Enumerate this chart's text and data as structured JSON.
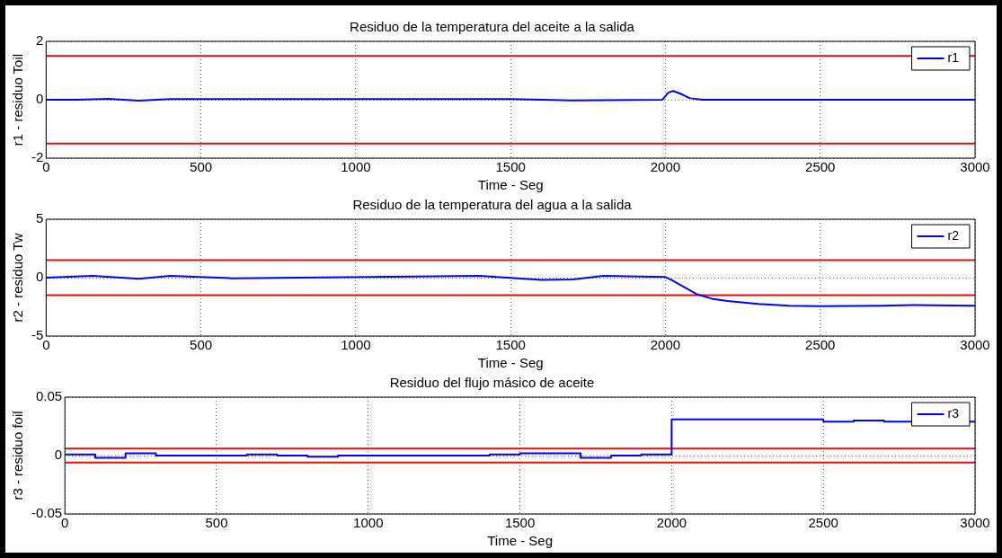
{
  "chart_data": [
    {
      "type": "line",
      "title": "Residuo de la temperatura del aceite a la salida",
      "xlabel": "Time - Seg",
      "ylabel": "r1 - residuo Toil",
      "xlim": [
        0,
        3000
      ],
      "xticks": [
        0,
        500,
        1000,
        1500,
        2000,
        2500,
        3000
      ],
      "ylim": [
        -2,
        2
      ],
      "yticks": [
        -2,
        0,
        2
      ],
      "grid": true,
      "legend": "top right",
      "series": [
        {
          "name": "r1",
          "color": "#0000ff",
          "x": [
            0,
            100,
            200,
            300,
            400,
            900,
            1500,
            1700,
            1990,
            2010,
            2025,
            2050,
            2080,
            2120,
            3000
          ],
          "values": [
            0,
            0,
            0.03,
            -0.03,
            0.02,
            0.02,
            0.02,
            -0.02,
            0,
            0.25,
            0.3,
            0.2,
            0.05,
            0,
            0
          ]
        }
      ],
      "ref_lines": [
        {
          "axis": "y",
          "value": 1.5,
          "color": "#e01010"
        },
        {
          "axis": "y",
          "value": -1.5,
          "color": "#e01010"
        }
      ]
    },
    {
      "type": "line",
      "title": "Residuo de la temperatura del agua a la salida",
      "xlabel": "Time - Seg",
      "ylabel": "r2 - residuo Tw",
      "xlim": [
        0,
        3000
      ],
      "xticks": [
        0,
        500,
        1000,
        1500,
        2000,
        2500,
        3000
      ],
      "ylim": [
        -5,
        5
      ],
      "yticks": [
        -5,
        0,
        5
      ],
      "grid": true,
      "legend": "top right",
      "series": [
        {
          "name": "r2",
          "color": "#0000ff",
          "x": [
            0,
            150,
            300,
            400,
            600,
            1400,
            1600,
            1700,
            1800,
            2000,
            2020,
            2060,
            2100,
            2150,
            2200,
            2300,
            2400,
            2500,
            2700,
            2800,
            3000
          ],
          "values": [
            0,
            0.15,
            -0.1,
            0.15,
            -0.05,
            0.15,
            -0.2,
            -0.15,
            0.15,
            0.05,
            -0.2,
            -0.8,
            -1.4,
            -1.8,
            -2.0,
            -2.25,
            -2.4,
            -2.45,
            -2.4,
            -2.35,
            -2.4
          ]
        }
      ],
      "ref_lines": [
        {
          "axis": "y",
          "value": 1.5,
          "color": "#e01010"
        },
        {
          "axis": "y",
          "value": -1.5,
          "color": "#e01010"
        }
      ]
    },
    {
      "type": "step",
      "title": "Residuo del flujo másico de aceite",
      "xlabel": "Time - Seg",
      "ylabel": "r3 - residuo foil",
      "xlim": [
        0,
        3000
      ],
      "xticks": [
        0,
        500,
        1000,
        1500,
        2000,
        2500,
        3000
      ],
      "ylim": [
        -0.05,
        0.05
      ],
      "yticks": [
        -0.05,
        0,
        0.05
      ],
      "grid": true,
      "legend": "top right",
      "series": [
        {
          "name": "r3",
          "color": "#0000ff",
          "x": [
            0,
            100,
            200,
            300,
            600,
            700,
            800,
            900,
            1400,
            1500,
            1700,
            1800,
            1900,
            2000,
            2500,
            2600,
            2700,
            3000
          ],
          "values": [
            0.001,
            -0.002,
            0.002,
            0,
            0.001,
            0,
            -0.001,
            0,
            0.001,
            0.002,
            -0.002,
            0,
            0.001,
            0.031,
            0.029,
            0.03,
            0.029,
            0.029
          ]
        }
      ],
      "ref_lines": [
        {
          "axis": "y",
          "value": 0.006,
          "color": "#e01010"
        },
        {
          "axis": "y",
          "value": -0.006,
          "color": "#e01010"
        }
      ]
    }
  ]
}
